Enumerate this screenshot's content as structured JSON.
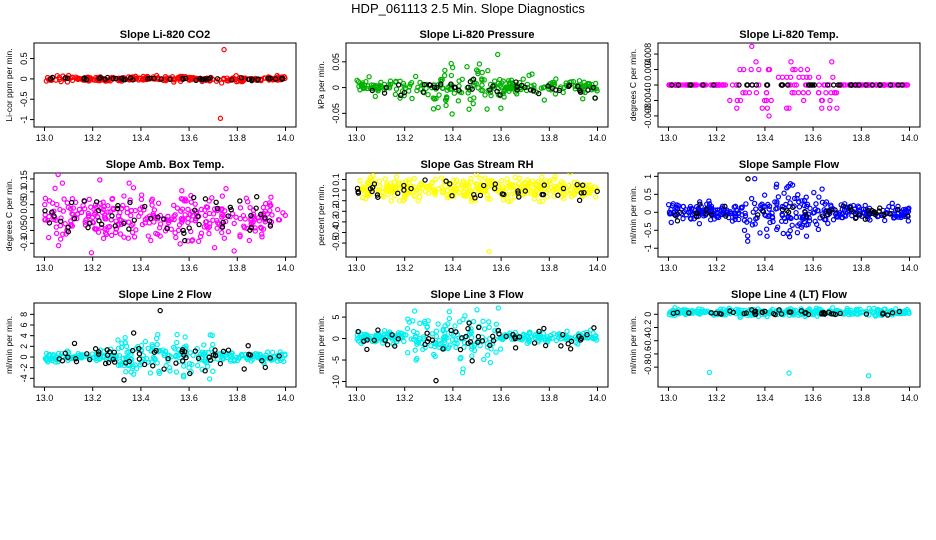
{
  "figure": {
    "title": "HDP_061113  2.5 Min. Slope Diagnostics"
  },
  "chart_data": [
    {
      "type": "scatter",
      "title": "Slope Li-820 CO2",
      "ylabel": "Li-cor ppm per min.",
      "xlim": [
        13.0,
        14.0
      ],
      "ylim": [
        -1.1,
        0.8
      ],
      "yticks": [
        -1,
        -0.5,
        0,
        0.5
      ],
      "xticks": [
        "13.0",
        "13.2",
        "13.4",
        "13.6",
        "13.8",
        "14.0"
      ],
      "series": [
        {
          "name": "main",
          "color": "#ff0000",
          "center": 0,
          "spread": 0.03,
          "count": 260,
          "xspread": [
            13.0,
            14.0
          ],
          "outliers": [
            [
              13.745,
              0.72
            ],
            [
              13.735,
              -0.1
            ],
            [
              13.73,
              -0.97
            ]
          ]
        },
        {
          "name": "black",
          "color": "#000000",
          "center": 0,
          "spread": 0.02,
          "count": 50
        }
      ]
    },
    {
      "type": "scatter",
      "title": "Slope Li-820 Pressure",
      "ylabel": "kPa per min.",
      "xlim": [
        13.0,
        14.0
      ],
      "ylim": [
        -0.07,
        0.08
      ],
      "yticks": [
        -0.05,
        0,
        0.05
      ],
      "xticks": [
        "13.0",
        "13.2",
        "13.4",
        "13.6",
        "13.8",
        "14.0"
      ],
      "series": [
        {
          "name": "main",
          "color": "#00b000",
          "center": 0,
          "spread": 0.008,
          "count": 260,
          "burst": [
            13.3,
            13.6,
            0.03
          ]
        },
        {
          "name": "black",
          "color": "#000000",
          "center": 0,
          "spread": 0.007,
          "count": 45
        }
      ]
    },
    {
      "type": "scatter",
      "title": "Slope Li-820 Temp.",
      "ylabel": "degrees C per min.",
      "xlim": [
        13.0,
        14.0
      ],
      "ylim": [
        -0.01,
        0.01
      ],
      "yticks": [
        -0.008,
        -0.004,
        0,
        0.004,
        0.008
      ],
      "xticks": [
        "13.0",
        "13.2",
        "13.4",
        "13.6",
        "13.8",
        "14.0"
      ],
      "series": [
        {
          "name": "main",
          "color": "#ff00ff",
          "center": 0,
          "spread": 0.0,
          "count": 200,
          "quantized": 0.002,
          "burst": [
            13.25,
            13.7,
            0.008
          ]
        },
        {
          "name": "black",
          "color": "#000000",
          "center": 0,
          "spread": 0.0,
          "count": 40
        }
      ]
    },
    {
      "type": "scatter",
      "title": "Slope Amb. Box Temp.",
      "ylabel": "degrees C per min.",
      "xlim": [
        13.0,
        14.0
      ],
      "ylim": [
        -0.14,
        0.16
      ],
      "yticks": [
        -0.1,
        -0.05,
        0,
        0.05,
        0.1,
        0.15
      ],
      "xticks": [
        "13.0",
        "13.2",
        "13.4",
        "13.6",
        "13.8",
        "14.0"
      ],
      "series": [
        {
          "name": "main",
          "color": "#ff00ff",
          "center": 0,
          "spread": 0.05,
          "count": 330
        },
        {
          "name": "black",
          "color": "#000000",
          "center": 0,
          "spread": 0.04,
          "count": 55
        }
      ]
    },
    {
      "type": "scatter",
      "title": "Slope Gas Stream RH",
      "ylabel": "percent per min.",
      "xlim": [
        13.0,
        14.0
      ],
      "ylim": [
        -0.6,
        0.13
      ],
      "yticks": [
        -0.5,
        -0.4,
        -0.3,
        -0.2,
        -0.1,
        0,
        0.1
      ],
      "xticks": [
        "13.0",
        "13.2",
        "13.4",
        "13.6",
        "13.8",
        "14.0"
      ],
      "series": [
        {
          "name": "main",
          "color": "#ffff00",
          "center": 0.01,
          "spread": 0.05,
          "count": 360,
          "outliers": [
            [
              13.55,
              -0.58
            ]
          ]
        },
        {
          "name": "black",
          "color": "#000000",
          "center": 0,
          "spread": 0.04,
          "count": 40
        }
      ]
    },
    {
      "type": "scatter",
      "title": "Slope Sample Flow",
      "ylabel": "ml/min per min.",
      "xlim": [
        13.0,
        14.0
      ],
      "ylim": [
        -1.15,
        1.0
      ],
      "yticks": [
        -1.0,
        -0.5,
        0,
        0.5,
        1.0
      ],
      "xticks": [
        "13.0",
        "13.2",
        "13.4",
        "13.6",
        "13.8",
        "14.0"
      ],
      "series": [
        {
          "name": "main",
          "color": "#0000ff",
          "center": 0,
          "spread": 0.12,
          "count": 360,
          "burst": [
            13.3,
            13.65,
            0.5
          ]
        },
        {
          "name": "black",
          "color": "#000000",
          "center": 0,
          "spread": 0.1,
          "count": 45,
          "outliers": [
            [
              13.33,
              0.93
            ]
          ]
        }
      ]
    },
    {
      "type": "scatter",
      "title": "Slope Line 2 Flow",
      "ylabel": "ml/min per min.",
      "xlim": [
        13.0,
        14.0
      ],
      "ylim": [
        -5,
        9.5
      ],
      "yticks": [
        -4,
        -2,
        0,
        2,
        4,
        6,
        8
      ],
      "xticks": [
        "13.0",
        "13.2",
        "13.4",
        "13.6",
        "13.8",
        "14.0"
      ],
      "series": [
        {
          "name": "main",
          "color": "#00f0f0",
          "center": 0,
          "spread": 0.5,
          "count": 320,
          "burst": [
            13.3,
            13.7,
            2.2
          ],
          "outliers": [
            [
              13.55,
              4.2
            ]
          ]
        },
        {
          "name": "black",
          "color": "#000000",
          "center": 0,
          "spread": 1.3,
          "count": 60,
          "outliers": [
            [
              13.48,
              8.7
            ],
            [
              13.33,
              -4.3
            ],
            [
              13.37,
              4.5
            ]
          ]
        }
      ]
    },
    {
      "type": "scatter",
      "title": "Slope Line 3 Flow",
      "ylabel": "ml/min per min.",
      "xlim": [
        13.0,
        14.0
      ],
      "ylim": [
        -10.5,
        7.5
      ],
      "yticks": [
        -10,
        -5,
        0,
        5
      ],
      "xticks": [
        "13.0",
        "13.2",
        "13.4",
        "13.6",
        "13.8",
        "14.0"
      ],
      "series": [
        {
          "name": "main",
          "color": "#00f0f0",
          "center": 0.3,
          "spread": 0.6,
          "count": 330,
          "burst": [
            13.2,
            13.6,
            3.5
          ],
          "outliers": [
            [
              13.5,
              6.7
            ],
            [
              13.45,
              5.3
            ]
          ]
        },
        {
          "name": "black",
          "color": "#000000",
          "center": 0,
          "spread": 1.5,
          "count": 55,
          "outliers": [
            [
              13.33,
              -9.8
            ],
            [
              13.48,
              -5.2
            ]
          ]
        }
      ]
    },
    {
      "type": "scatter",
      "title": "Slope Line 4 (LT) Flow",
      "ylabel": "ml/min per min.",
      "xlim": [
        13.0,
        14.0
      ],
      "ylim": [
        -1.05,
        0.12
      ],
      "yticks": [
        -0.8,
        -0.6,
        -0.4,
        -0.2,
        0.0
      ],
      "xticks": [
        "13.0",
        "13.2",
        "13.4",
        "13.6",
        "13.8",
        "14.0"
      ],
      "series": [
        {
          "name": "main",
          "color": "#00f0f0",
          "center": 0.03,
          "spread": 0.025,
          "count": 340,
          "outliers": [
            [
              13.17,
              -0.88
            ],
            [
              13.5,
              -0.89
            ],
            [
              13.83,
              -0.93
            ]
          ]
        },
        {
          "name": "black",
          "color": "#000000",
          "center": 0.02,
          "spread": 0.02,
          "count": 45
        }
      ]
    }
  ]
}
